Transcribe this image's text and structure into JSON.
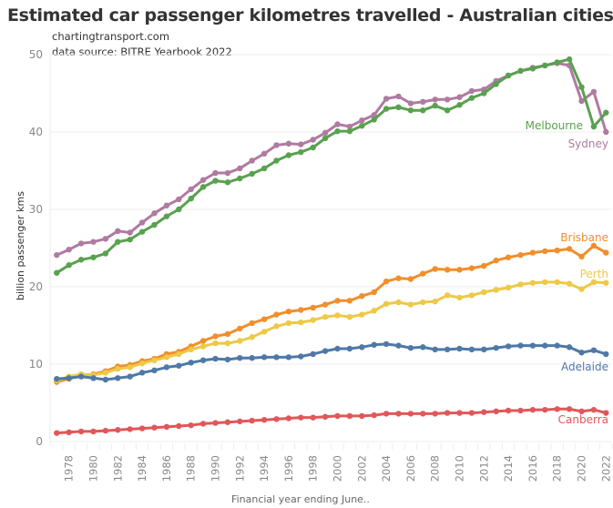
{
  "chart_data": {
    "type": "line",
    "title": "Estimated car passenger kilometres travelled - Australian cities",
    "subtitle_lines": [
      "chartingtransport.com",
      "data source: BITRE Yearbook 2022"
    ],
    "xlabel": "Financial year ending June..",
    "ylabel": "billion passenger kms",
    "ylim": [
      0,
      50
    ],
    "xlim": [
      1977,
      2022
    ],
    "y_ticks": [
      0,
      10,
      20,
      30,
      40,
      50
    ],
    "x_ticks": [
      1978,
      1980,
      1982,
      1984,
      1986,
      1988,
      1990,
      1992,
      1994,
      1996,
      1998,
      2000,
      2002,
      2004,
      2006,
      2008,
      2010,
      2012,
      2014,
      2016,
      2018,
      2020,
      2022
    ],
    "grid": true,
    "legend": "inline-right",
    "x": [
      1977,
      1978,
      1979,
      1980,
      1981,
      1982,
      1983,
      1984,
      1985,
      1986,
      1987,
      1988,
      1989,
      1990,
      1991,
      1992,
      1993,
      1994,
      1995,
      1996,
      1997,
      1998,
      1999,
      2000,
      2001,
      2002,
      2003,
      2004,
      2005,
      2006,
      2007,
      2008,
      2009,
      2010,
      2011,
      2012,
      2013,
      2014,
      2015,
      2016,
      2017,
      2018,
      2019,
      2020,
      2021,
      2022
    ],
    "series": [
      {
        "name": "Sydney",
        "color": "#b07aa1",
        "values": [
          24.1,
          24.8,
          25.6,
          25.8,
          26.2,
          27.2,
          27.0,
          28.3,
          29.5,
          30.5,
          31.3,
          32.6,
          33.8,
          34.7,
          34.7,
          35.3,
          36.3,
          37.2,
          38.3,
          38.5,
          38.4,
          39.0,
          39.9,
          41.0,
          40.7,
          41.5,
          42.2,
          44.3,
          44.6,
          43.7,
          43.9,
          44.2,
          44.2,
          44.5,
          45.3,
          45.5,
          46.6,
          47.3,
          47.9,
          48.3,
          48.6,
          48.9,
          48.6,
          44.0,
          45.2,
          40.0
        ]
      },
      {
        "name": "Melbourne",
        "color": "#59a14f",
        "values": [
          21.8,
          22.8,
          23.5,
          23.8,
          24.3,
          25.8,
          26.1,
          27.1,
          28.0,
          29.1,
          30.0,
          31.4,
          32.9,
          33.7,
          33.5,
          34.0,
          34.6,
          35.3,
          36.3,
          37.0,
          37.4,
          38.0,
          39.2,
          40.1,
          40.1,
          40.8,
          41.6,
          43.0,
          43.2,
          42.8,
          42.8,
          43.4,
          42.8,
          43.5,
          44.4,
          45.0,
          46.2,
          47.3,
          47.9,
          48.2,
          48.6,
          49.0,
          49.4,
          45.8,
          40.7,
          42.5
        ]
      },
      {
        "name": "Brisbane",
        "color": "#f28e2b",
        "values": [
          7.7,
          8.1,
          8.5,
          8.7,
          9.1,
          9.7,
          9.9,
          10.4,
          10.7,
          11.3,
          11.6,
          12.3,
          13.0,
          13.6,
          13.9,
          14.6,
          15.3,
          15.8,
          16.4,
          16.8,
          17.0,
          17.3,
          17.7,
          18.2,
          18.2,
          18.8,
          19.3,
          20.7,
          21.1,
          21.0,
          21.7,
          22.3,
          22.2,
          22.2,
          22.4,
          22.7,
          23.4,
          23.8,
          24.1,
          24.4,
          24.6,
          24.7,
          24.9,
          23.9,
          25.3,
          24.4
        ]
      },
      {
        "name": "Perth",
        "color": "#edc948",
        "values": [
          7.9,
          8.4,
          8.7,
          8.6,
          8.9,
          9.4,
          9.6,
          10.1,
          10.5,
          10.9,
          11.3,
          11.9,
          12.3,
          12.7,
          12.7,
          13.0,
          13.5,
          14.2,
          14.9,
          15.3,
          15.4,
          15.7,
          16.1,
          16.3,
          16.1,
          16.4,
          16.9,
          17.8,
          18.0,
          17.7,
          18.0,
          18.1,
          18.9,
          18.6,
          18.9,
          19.3,
          19.6,
          19.9,
          20.3,
          20.5,
          20.6,
          20.6,
          20.4,
          19.7,
          20.6,
          20.5
        ]
      },
      {
        "name": "Adelaide",
        "color": "#4e79a7",
        "values": [
          8.1,
          8.2,
          8.4,
          8.2,
          8.0,
          8.2,
          8.4,
          8.9,
          9.2,
          9.6,
          9.8,
          10.2,
          10.5,
          10.7,
          10.6,
          10.8,
          10.8,
          10.9,
          10.9,
          10.9,
          11.0,
          11.3,
          11.7,
          12.0,
          12.0,
          12.2,
          12.5,
          12.6,
          12.4,
          12.1,
          12.2,
          11.9,
          11.9,
          12.0,
          11.9,
          11.9,
          12.1,
          12.3,
          12.4,
          12.4,
          12.4,
          12.4,
          12.2,
          11.5,
          11.8,
          11.3
        ]
      },
      {
        "name": "Canberra",
        "color": "#e15759",
        "values": [
          1.1,
          1.2,
          1.3,
          1.3,
          1.4,
          1.5,
          1.6,
          1.7,
          1.8,
          1.9,
          2.0,
          2.1,
          2.3,
          2.4,
          2.5,
          2.6,
          2.7,
          2.8,
          2.9,
          3.0,
          3.1,
          3.1,
          3.2,
          3.3,
          3.3,
          3.3,
          3.4,
          3.6,
          3.6,
          3.6,
          3.6,
          3.6,
          3.7,
          3.7,
          3.7,
          3.8,
          3.9,
          4.0,
          4.0,
          4.1,
          4.1,
          4.2,
          4.2,
          3.9,
          4.1,
          3.7
        ]
      }
    ]
  }
}
